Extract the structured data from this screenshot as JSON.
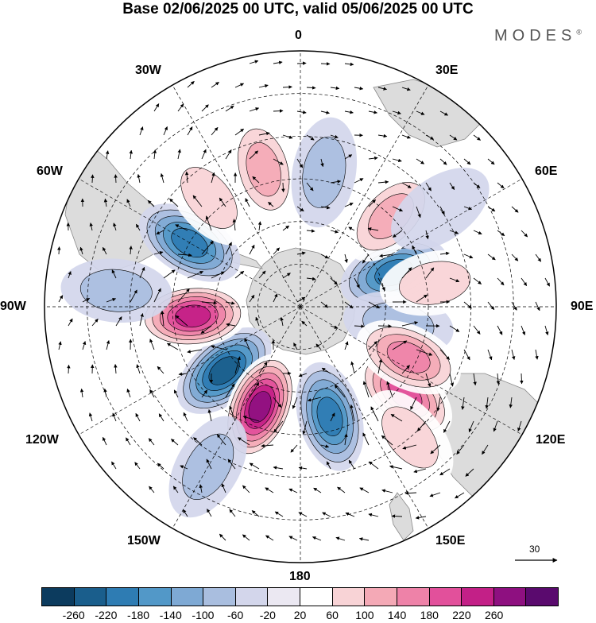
{
  "title": "Base 02/06/2025 00 UTC, valid 05/06/2025 00 UTC",
  "brand": "MODES",
  "brand_mark": "®",
  "longitude_labels": {
    "top": "0",
    "top_right": "30E",
    "upper_right": "60E",
    "right": "90E",
    "lower_right": "120E",
    "bottom_right": "150E",
    "bottom": "180",
    "bottom_left": "150W",
    "lower_left": "120W",
    "left": "90W",
    "upper_left": "60W",
    "top_left": "30W"
  },
  "wind_scale_label": "30",
  "colorbar": {
    "colors": [
      "#0c3b5e",
      "#1a5e8c",
      "#2e7cb3",
      "#5298c8",
      "#7ea9d4",
      "#a9bedf",
      "#d3d6eb",
      "#ebe8f2",
      "#ffffff",
      "#f8d3d6",
      "#f4a9b6",
      "#ee82a8",
      "#e2509b",
      "#c32087",
      "#8e1080",
      "#5a0a6e"
    ],
    "tick_labels": [
      "-260",
      "-220",
      "-180",
      "-140",
      "-100",
      "-60",
      "-20",
      "20",
      "60",
      "100",
      "140",
      "180",
      "220",
      "260"
    ]
  },
  "map": {
    "projection": "south polar stereographic",
    "land_color": "#dcdcdc",
    "gridline_style": "dashed",
    "anomalies": [
      {
        "lon": 70,
        "lat": -55,
        "value": -200
      },
      {
        "lon": 45,
        "lat": -45,
        "value": 120
      },
      {
        "lon": -130,
        "lat": -55,
        "value": -220
      },
      {
        "lon": -95,
        "lat": -52,
        "value": 230
      },
      {
        "lon": -158,
        "lat": -52,
        "value": 260
      },
      {
        "lon": 165,
        "lat": -50,
        "value": -200
      },
      {
        "lon": 130,
        "lat": -42,
        "value": 180
      },
      {
        "lon": -60,
        "lat": -45,
        "value": -200
      },
      {
        "lon": -40,
        "lat": -40,
        "value": 60
      },
      {
        "lon": -15,
        "lat": -40,
        "value": 100
      },
      {
        "lon": 10,
        "lat": -42,
        "value": -60
      },
      {
        "lon": 100,
        "lat": -55,
        "value": -60
      },
      {
        "lon": 115,
        "lat": -48,
        "value": 140
      },
      {
        "lon": 80,
        "lat": -42,
        "value": 60
      },
      {
        "lon": -85,
        "lat": -25,
        "value": -80
      },
      {
        "lon": -150,
        "lat": -25,
        "value": -60
      },
      {
        "lon": 140,
        "lat": -30,
        "value": 80
      },
      {
        "lon": 55,
        "lat": -30,
        "value": -40
      }
    ]
  }
}
